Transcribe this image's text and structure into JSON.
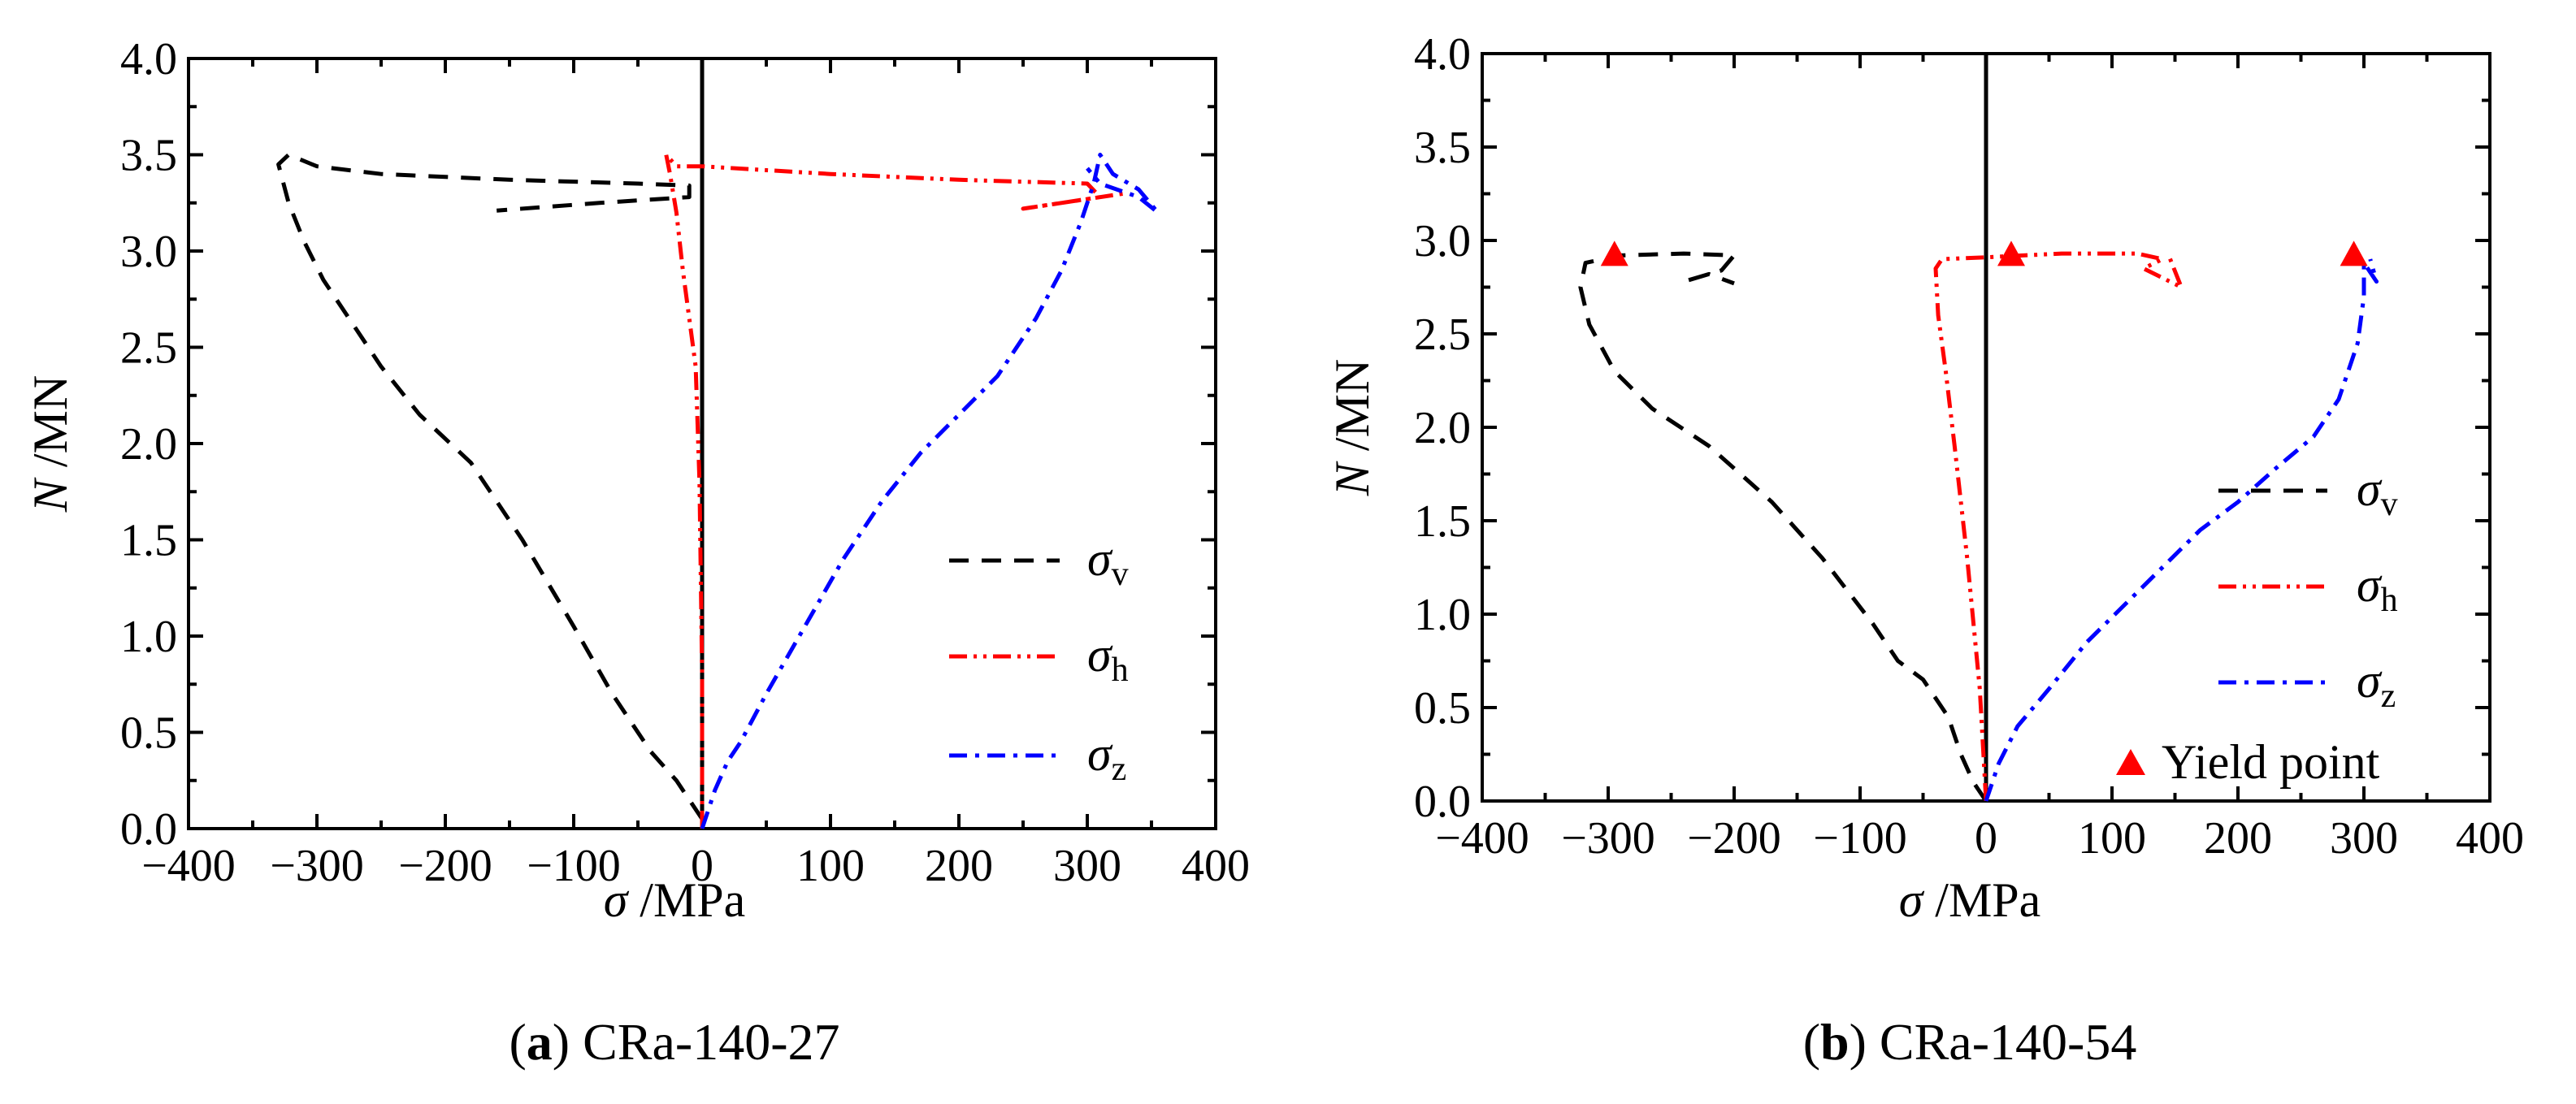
{
  "colors": {
    "v": "#000000",
    "h": "#ff0000",
    "z": "#0000ff",
    "yield": "#ff0000",
    "axis": "#000000"
  },
  "captions": [
    {
      "letter": "a",
      "open": "(",
      "close": ")",
      "text": " CRa-140-27"
    },
    {
      "letter": "b",
      "open": "(",
      "close": ")",
      "text": " CRa-140-54"
    }
  ],
  "axis_labels": {
    "x_sym": "σ",
    "x_unit": " /MPa",
    "y_sym": "N",
    "y_unit": " /MN"
  },
  "legend": {
    "sigma": "σ",
    "v_sub": "v",
    "h_sub": "h",
    "z_sub": "z",
    "yield": "Yield point"
  },
  "chart_data": [
    {
      "type": "line",
      "title": "(a) CRa-140-27",
      "xlabel": "σ /MPa",
      "ylabel": "N /MN",
      "xlim": [
        -400,
        400
      ],
      "ylim": [
        0,
        4.0
      ],
      "xticks": [
        -400,
        -300,
        -200,
        -100,
        0,
        100,
        200,
        300,
        400
      ],
      "xtick_labels": [
        "−400",
        "−300",
        "−200",
        "−100",
        "0",
        "100",
        "200",
        "300",
        "400"
      ],
      "yticks": [
        0,
        0.5,
        1.0,
        1.5,
        2.0,
        2.5,
        3.0,
        3.5,
        4.0
      ],
      "ytick_labels": [
        "0.0",
        "0.5",
        "1.0",
        "1.5",
        "2.0",
        "2.5",
        "3.0",
        "3.5",
        "4.0"
      ],
      "legend_position": "lower-right",
      "series": [
        {
          "name": "σv",
          "style": "dash",
          "points": [
            [
              0,
              0.05
            ],
            [
              -10,
              0.15
            ],
            [
              -20,
              0.25
            ],
            [
              -40,
              0.4
            ],
            [
              -70,
              0.7
            ],
            [
              -100,
              1.05
            ],
            [
              -140,
              1.5
            ],
            [
              -180,
              1.9
            ],
            [
              -220,
              2.15
            ],
            [
              -250,
              2.4
            ],
            [
              -270,
              2.6
            ],
            [
              -295,
              2.85
            ],
            [
              -310,
              3.05
            ],
            [
              -322,
              3.25
            ],
            [
              -330,
              3.45
            ],
            [
              -322,
              3.5
            ],
            [
              -300,
              3.44
            ],
            [
              -250,
              3.4
            ],
            [
              -150,
              3.37
            ],
            [
              -50,
              3.35
            ],
            [
              -10,
              3.34
            ],
            [
              -10,
              3.28
            ],
            [
              -80,
              3.25
            ],
            [
              -160,
              3.21
            ]
          ]
        },
        {
          "name": "σh",
          "style": "dashdotdot",
          "points": [
            [
              0,
              0
            ],
            [
              0,
              0.8
            ],
            [
              -2,
              1.8
            ],
            [
              -5,
              2.4
            ],
            [
              -15,
              2.9
            ],
            [
              -20,
              3.2
            ],
            [
              -25,
              3.4
            ],
            [
              -28,
              3.5
            ],
            [
              -20,
              3.44
            ],
            [
              0,
              3.44
            ],
            [
              100,
              3.4
            ],
            [
              200,
              3.37
            ],
            [
              300,
              3.35
            ],
            [
              310,
              3.28
            ],
            [
              250,
              3.22
            ],
            [
              330,
              3.3
            ]
          ]
        },
        {
          "name": "σz",
          "style": "dashdot",
          "points": [
            [
              0,
              0
            ],
            [
              10,
              0.2
            ],
            [
              20,
              0.35
            ],
            [
              30,
              0.45
            ],
            [
              50,
              0.7
            ],
            [
              80,
              1.05
            ],
            [
              110,
              1.4
            ],
            [
              140,
              1.7
            ],
            [
              170,
              1.95
            ],
            [
              200,
              2.15
            ],
            [
              230,
              2.35
            ],
            [
              260,
              2.65
            ],
            [
              280,
              2.9
            ],
            [
              295,
              3.15
            ],
            [
              305,
              3.35
            ],
            [
              310,
              3.5
            ],
            [
              320,
              3.4
            ],
            [
              340,
              3.32
            ],
            [
              355,
              3.2
            ],
            [
              340,
              3.28
            ],
            [
              310,
              3.35
            ],
            [
              300,
              3.43
            ]
          ]
        }
      ],
      "legend_entries": [
        "σv",
        "σh",
        "σz"
      ]
    },
    {
      "type": "line",
      "title": "(b) CRa-140-54",
      "xlabel": "σ /MPa",
      "ylabel": "N /MN",
      "xlim": [
        -400,
        400
      ],
      "ylim": [
        0,
        4.0
      ],
      "xticks": [
        -400,
        -300,
        -200,
        -100,
        0,
        100,
        200,
        300,
        400
      ],
      "xtick_labels": [
        "−400",
        "−300",
        "−200",
        "−100",
        "0",
        "100",
        "200",
        "300",
        "400"
      ],
      "yticks": [
        0,
        0.5,
        1.0,
        1.5,
        2.0,
        2.5,
        3.0,
        3.5,
        4.0
      ],
      "ytick_labels": [
        "0.0",
        "0.5",
        "1.0",
        "1.5",
        "2.0",
        "2.5",
        "3.0",
        "3.5",
        "4.0"
      ],
      "legend_position": "lower-right",
      "series": [
        {
          "name": "σv",
          "style": "dash",
          "points": [
            [
              0,
              0
            ],
            [
              -10,
              0.1
            ],
            [
              -20,
              0.25
            ],
            [
              -30,
              0.45
            ],
            [
              -50,
              0.65
            ],
            [
              -70,
              0.75
            ],
            [
              -90,
              0.95
            ],
            [
              -130,
              1.3
            ],
            [
              -170,
              1.6
            ],
            [
              -220,
              1.9
            ],
            [
              -265,
              2.1
            ],
            [
              -295,
              2.3
            ],
            [
              -315,
              2.55
            ],
            [
              -322,
              2.75
            ],
            [
              -318,
              2.88
            ],
            [
              -290,
              2.92
            ],
            [
              -240,
              2.93
            ],
            [
              -200,
              2.92
            ],
            [
              -210,
              2.84
            ],
            [
              -240,
              2.78
            ],
            [
              -220,
              2.82
            ],
            [
              -200,
              2.77
            ]
          ]
        },
        {
          "name": "σh",
          "style": "dashdotdot",
          "points": [
            [
              0,
              0
            ],
            [
              -5,
              0.6
            ],
            [
              -15,
              1.3
            ],
            [
              -25,
              1.9
            ],
            [
              -32,
              2.3
            ],
            [
              -38,
              2.6
            ],
            [
              -40,
              2.85
            ],
            [
              -35,
              2.9
            ],
            [
              0,
              2.91
            ],
            [
              60,
              2.93
            ],
            [
              120,
              2.93
            ],
            [
              140,
              2.9
            ],
            [
              125,
              2.85
            ],
            [
              140,
              2.8
            ],
            [
              155,
              2.75
            ],
            [
              145,
              2.92
            ]
          ]
        },
        {
          "name": "σz",
          "style": "dashdot",
          "points": [
            [
              0,
              0
            ],
            [
              10,
              0.2
            ],
            [
              25,
              0.4
            ],
            [
              50,
              0.6
            ],
            [
              80,
              0.85
            ],
            [
              110,
              1.05
            ],
            [
              140,
              1.25
            ],
            [
              170,
              1.45
            ],
            [
              200,
              1.6
            ],
            [
              230,
              1.78
            ],
            [
              260,
              1.95
            ],
            [
              280,
              2.15
            ],
            [
              295,
              2.45
            ],
            [
              300,
              2.7
            ],
            [
              300,
              2.88
            ],
            [
              310,
              2.78
            ],
            [
              305,
              2.9
            ]
          ]
        }
      ],
      "yield_points": [
        [
          -295,
          2.92
        ],
        [
          20,
          2.92
        ],
        [
          292,
          2.92
        ]
      ],
      "legend_entries": [
        "σv",
        "σh",
        "σz",
        "Yield point"
      ]
    }
  ]
}
